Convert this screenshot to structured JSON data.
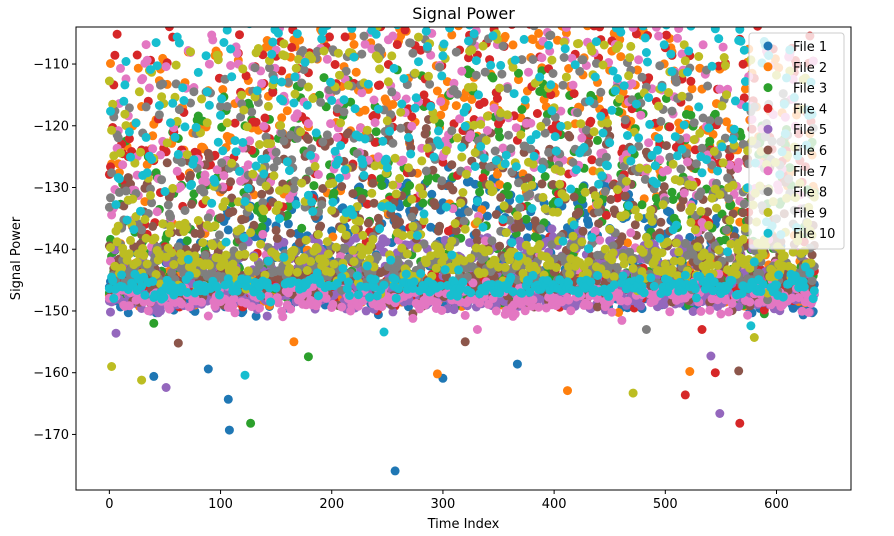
{
  "chart_data": {
    "type": "scatter",
    "title": "Signal Power",
    "xlabel": "Time Index",
    "ylabel": "Signal Power",
    "xlim": [
      -30,
      667
    ],
    "ylim": [
      -179,
      -104
    ],
    "xticks": [
      0,
      100,
      200,
      300,
      400,
      500,
      600
    ],
    "yticks": [
      -110,
      -120,
      -130,
      -140,
      -150,
      -160,
      -170
    ],
    "grid": false,
    "legend_position": "top-right",
    "x_count": 635,
    "series": [
      {
        "name": "File 1",
        "color": "#1f77b4",
        "peak": -132,
        "envelope_amp": 15,
        "osc_amp": 4,
        "period": 20,
        "floor": -147,
        "spread": 3.0,
        "outliers": [
          [
            107,
            -164.3
          ],
          [
            108,
            -169.3
          ],
          [
            257,
            -175.9
          ],
          [
            300,
            -160.9
          ],
          [
            367,
            -158.6
          ],
          [
            40,
            -160.6
          ],
          [
            89,
            -159.4
          ]
        ]
      },
      {
        "name": "File 2",
        "color": "#ff7f0e",
        "peak": -110,
        "envelope_amp": 10,
        "osc_amp": 8,
        "period": 24,
        "floor": -146,
        "spread": 3.0,
        "outliers": [
          [
            295,
            -160.2
          ],
          [
            412,
            -162.9
          ],
          [
            522,
            -159.8
          ],
          [
            166,
            -155.0
          ]
        ]
      },
      {
        "name": "File 3",
        "color": "#2ca02c",
        "peak": -121,
        "envelope_amp": 12,
        "osc_amp": 10,
        "period": 22,
        "floor": -146,
        "spread": 3.0,
        "outliers": [
          [
            127,
            -168.2
          ],
          [
            179,
            -157.4
          ],
          [
            40,
            -152.0
          ]
        ]
      },
      {
        "name": "File 4",
        "color": "#d62728",
        "peak": -108,
        "envelope_amp": 10,
        "osc_amp": 12,
        "period": 16,
        "floor": -146,
        "spread": 3.0,
        "outliers": [
          [
            518,
            -163.6
          ],
          [
            545,
            -160.0
          ],
          [
            567,
            -168.2
          ],
          [
            533,
            -153.0
          ]
        ]
      },
      {
        "name": "File 5",
        "color": "#9467bd",
        "peak": -140,
        "envelope_amp": 4,
        "osc_amp": 2,
        "period": 30,
        "floor": -148,
        "spread": 2.0,
        "outliers": [
          [
            51,
            -162.4
          ],
          [
            549,
            -166.6
          ],
          [
            6,
            -153.6
          ],
          [
            541,
            -157.3
          ]
        ]
      },
      {
        "name": "File 6",
        "color": "#8c564b",
        "peak": -128,
        "envelope_amp": 8,
        "osc_amp": 8,
        "period": 18,
        "floor": -146,
        "spread": 3.0,
        "outliers": [
          [
            62,
            -155.2
          ],
          [
            566,
            -159.7
          ],
          [
            320,
            -155.0
          ]
        ]
      },
      {
        "name": "File 7",
        "color": "#e377c2",
        "peak": -113,
        "envelope_amp": 8,
        "osc_amp": 12,
        "period": 20,
        "floor": -148,
        "spread": 2.5,
        "outliers": [
          [
            25,
            -125.0
          ],
          [
            331,
            -153.0
          ]
        ]
      },
      {
        "name": "File 8",
        "color": "#7f7f7f",
        "peak": -115,
        "envelope_amp": 12,
        "osc_amp": 10,
        "period": 14,
        "floor": -143,
        "spread": 3.5,
        "outliers": [
          [
            570,
            -123.0
          ],
          [
            483,
            -153.0
          ]
        ]
      },
      {
        "name": "File 9",
        "color": "#bcbd22",
        "peak": -119,
        "envelope_amp": 6,
        "osc_amp": 14,
        "period": 12,
        "floor": -142,
        "spread": 4.0,
        "outliers": [
          [
            2,
            -159.0
          ],
          [
            29,
            -161.2
          ],
          [
            471,
            -163.3
          ],
          [
            88,
            -119.5
          ],
          [
            580,
            -154.3
          ]
        ]
      },
      {
        "name": "File 10",
        "color": "#17becf",
        "peak": -113,
        "envelope_amp": 6,
        "osc_amp": 12,
        "period": 22,
        "floor": -146,
        "spread": 1.8,
        "outliers": [
          [
            122,
            -160.4
          ],
          [
            256,
            -110.7
          ],
          [
            247,
            -153.4
          ],
          [
            577,
            -152.4
          ]
        ]
      }
    ]
  }
}
